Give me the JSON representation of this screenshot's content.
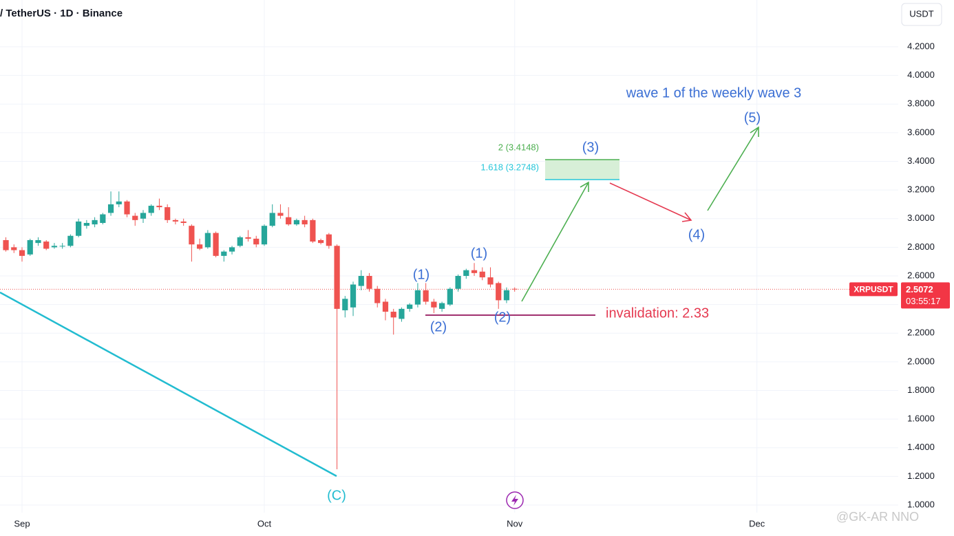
{
  "header": {
    "symbol": "/ TetherUS · 1D · Binance",
    "currency": "USDT"
  },
  "chart_data": {
    "type": "candlestick",
    "x": [
      -2,
      -1,
      0,
      1,
      2,
      3,
      4,
      5,
      6,
      7,
      8,
      9,
      10,
      11,
      12,
      13,
      14,
      15,
      16,
      17,
      18,
      19,
      20,
      21,
      22,
      23,
      24,
      25,
      26,
      27,
      28,
      29,
      30,
      31,
      32,
      33,
      34,
      35,
      36,
      37,
      38,
      39,
      40,
      41,
      42,
      43,
      44,
      45,
      46,
      47,
      48,
      49,
      50,
      51,
      52,
      53,
      54,
      55,
      56,
      57,
      58,
      59,
      60,
      61
    ],
    "open": [
      2.85,
      2.8,
      2.78,
      2.75,
      2.83,
      2.84,
      2.8,
      2.81,
      2.81,
      2.88,
      2.95,
      2.96,
      2.97,
      3.04,
      3.1,
      3.12,
      3.02,
      3.0,
      3.04,
      3.09,
      3.08,
      2.99,
      2.98,
      2.95,
      2.82,
      2.8,
      2.9,
      2.74,
      2.77,
      2.81,
      2.87,
      2.86,
      2.82,
      2.95,
      3.04,
      3.01,
      2.96,
      2.99,
      2.99,
      2.85,
      2.89,
      2.81,
      2.36,
      2.38,
      2.53,
      2.6,
      2.51,
      2.42,
      2.35,
      2.3,
      2.37,
      2.4,
      2.5,
      2.42,
      2.37,
      2.4,
      2.51,
      2.6,
      2.64,
      2.63,
      2.59,
      2.55,
      2.43,
      2.51
    ],
    "high": [
      2.87,
      2.82,
      2.8,
      2.86,
      2.87,
      2.85,
      2.83,
      2.83,
      2.89,
      3.0,
      2.99,
      3.01,
      3.04,
      3.19,
      3.19,
      3.13,
      3.04,
      3.06,
      3.1,
      3.14,
      3.1,
      3.0,
      3.0,
      2.96,
      2.86,
      2.92,
      2.91,
      2.78,
      2.81,
      2.88,
      2.92,
      2.88,
      2.96,
      3.1,
      3.1,
      3.08,
      3.0,
      3.02,
      3.0,
      2.86,
      2.9,
      2.82,
      2.46,
      2.56,
      2.64,
      2.62,
      2.53,
      2.44,
      2.37,
      2.38,
      2.41,
      2.55,
      2.55,
      2.44,
      2.42,
      2.52,
      2.61,
      2.65,
      2.69,
      2.66,
      2.66,
      2.56,
      2.52,
      2.52
    ],
    "low": [
      2.77,
      2.76,
      2.7,
      2.74,
      2.81,
      2.78,
      2.79,
      2.79,
      2.8,
      2.87,
      2.93,
      2.94,
      2.96,
      3.02,
      3.08,
      3.01,
      2.95,
      2.97,
      3.02,
      3.06,
      2.97,
      2.96,
      2.95,
      2.7,
      2.78,
      2.79,
      2.73,
      2.7,
      2.75,
      2.8,
      2.84,
      2.8,
      2.81,
      2.94,
      3.0,
      2.95,
      2.95,
      2.94,
      2.83,
      2.82,
      2.79,
      1.25,
      2.31,
      2.32,
      2.5,
      2.49,
      2.38,
      2.29,
      2.19,
      2.28,
      2.35,
      2.38,
      2.4,
      2.34,
      2.35,
      2.39,
      2.49,
      2.58,
      2.6,
      2.57,
      2.52,
      2.37,
      2.41,
      2.49
    ],
    "close": [
      2.78,
      2.78,
      2.74,
      2.85,
      2.85,
      2.79,
      2.81,
      2.81,
      2.88,
      2.98,
      2.97,
      2.99,
      3.03,
      3.1,
      3.12,
      3.03,
      2.99,
      3.04,
      3.09,
      3.08,
      2.99,
      2.98,
      2.97,
      2.82,
      2.79,
      2.9,
      2.74,
      2.77,
      2.8,
      2.87,
      2.86,
      2.82,
      2.95,
      3.04,
      3.02,
      2.96,
      2.99,
      2.96,
      2.84,
      2.83,
      2.81,
      2.37,
      2.44,
      2.54,
      2.6,
      2.51,
      2.41,
      2.35,
      2.31,
      2.37,
      2.4,
      2.5,
      2.42,
      2.38,
      2.41,
      2.51,
      2.6,
      2.64,
      2.62,
      2.59,
      2.54,
      2.43,
      2.5,
      2.5072
    ],
    "up_color": "#26a69a",
    "down_color": "#ef5350",
    "xlim": [
      -2.728,
      108.5
    ],
    "xticks": [
      {
        "value": 0,
        "label": "Sep"
      },
      {
        "value": 30,
        "label": "Oct"
      },
      {
        "value": 61,
        "label": "Nov"
      },
      {
        "value": 91,
        "label": "Dec"
      }
    ],
    "ylim": [
      0.947,
      4.527
    ],
    "yticks": [
      {
        "value": 1.0,
        "label": "1.0000"
      },
      {
        "value": 1.2,
        "label": "1.2000"
      },
      {
        "value": 1.4,
        "label": "1.4000"
      },
      {
        "value": 1.6,
        "label": "1.6000"
      },
      {
        "value": 1.8,
        "label": "1.8000"
      },
      {
        "value": 2.0,
        "label": "2.0000"
      },
      {
        "value": 2.2,
        "label": "2.2000"
      },
      {
        "value": 2.4,
        "label": "2.4000"
      },
      {
        "value": 2.6,
        "label": "2.6000"
      },
      {
        "value": 2.8,
        "label": "2.8000"
      },
      {
        "value": 3.0,
        "label": "3.0000"
      },
      {
        "value": 3.2,
        "label": "3.2000"
      },
      {
        "value": 3.4,
        "label": "3.4000"
      },
      {
        "value": 3.6,
        "label": "3.6000"
      },
      {
        "value": 3.8,
        "label": "3.8000"
      },
      {
        "value": 4.0,
        "label": "4.0000"
      },
      {
        "value": 4.2,
        "label": "4.2000"
      }
    ],
    "grid": true,
    "last_price": 2.5072,
    "price_label": "XRPUSDT",
    "countdown": "03:55:17",
    "annotations": {
      "headline": "wave 1 of the weekly wave 3",
      "fib_upper": "2 (3.4148)",
      "fib_lower": "1.618 (3.2748)",
      "invalidation": "invalidation: 2.33",
      "waves": [
        "(C)",
        "(1)",
        "(2)",
        "(1)",
        "(2)",
        "(3)",
        "(4)",
        "(5)"
      ]
    }
  },
  "watermark": "@GK-AR  NNO"
}
